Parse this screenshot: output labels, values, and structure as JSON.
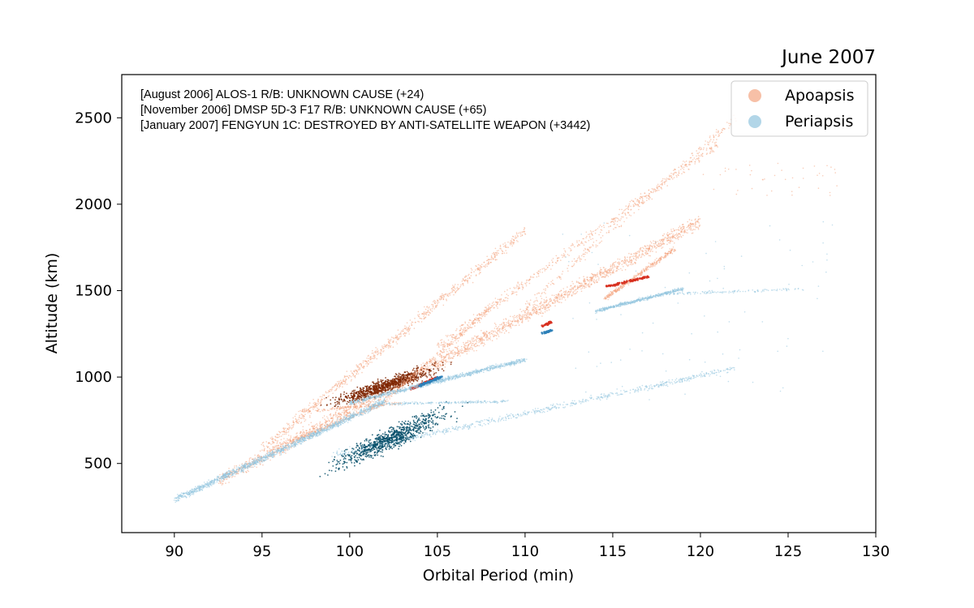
{
  "chart_data": {
    "type": "scatter",
    "title": "June 2007",
    "xlabel": "Orbital Period (min)",
    "ylabel": "Altitude (km)",
    "xlim": [
      87,
      130
    ],
    "ylim": [
      100,
      2750
    ],
    "xticks": [
      90,
      95,
      100,
      105,
      110,
      115,
      120,
      125,
      130
    ],
    "yticks": [
      500,
      1000,
      1500,
      2000,
      2500
    ],
    "grid": false,
    "legend_position": "top-right",
    "annotations": [
      "[August 2006]  ALOS-1 R/B: UNKNOWN CAUSE (+24)",
      "[November 2006]  DMSP 5D-3 F17 R/B: UNKNOWN CAUSE (+65)",
      "[January 2007]  FENGYUN 1C: DESTROYED BY ANTI-SATELLITE WEAPON (+3442)"
    ],
    "series": [
      {
        "name": "Apoapsis",
        "color": "#f4a582",
        "highlight_color": "#d7301f",
        "dark_color": "#7f2704",
        "clusters": [
          {
            "kind": "band",
            "x": [
              92.5,
              120
            ],
            "y": [
              400,
              1900
            ],
            "count": 2300
          },
          {
            "kind": "band",
            "x": [
              95,
              110
            ],
            "y": [
              580,
              1850
            ],
            "count": 800
          },
          {
            "kind": "band",
            "x": [
              105,
              121
            ],
            "y": [
              1180,
              2350
            ],
            "count": 500
          },
          {
            "kind": "band",
            "x": [
              110,
              122
            ],
            "y": [
              1400,
              2500
            ],
            "count": 250
          },
          {
            "kind": "band",
            "x": [
              114.5,
              118.5
            ],
            "y": [
              1450,
              1740
            ],
            "count": 350
          },
          {
            "kind": "band",
            "x": [
              96.5,
              102
            ],
            "y": [
              620,
              850
            ],
            "count": 250
          },
          {
            "kind": "highlight",
            "x": [
              103.5,
              105
            ],
            "y": [
              930,
              1000
            ],
            "count": 80
          },
          {
            "kind": "highlight",
            "x": [
              111,
              111.5
            ],
            "y": [
              1295,
              1320
            ],
            "count": 30
          },
          {
            "kind": "highlight",
            "x": [
              114.5,
              117
            ],
            "y": [
              1520,
              1580
            ],
            "count": 80
          },
          {
            "kind": "blob",
            "x": [
              97,
              107
            ],
            "y": [
              780,
              1120
            ],
            "count": 900
          },
          {
            "kind": "band",
            "x": [
              102,
              108.5
            ],
            "y": [
              860,
              1440
            ],
            "count": 300
          },
          {
            "kind": "band",
            "x": [
              97,
              103
            ],
            "y": [
              800,
              850
            ],
            "count": 150
          },
          {
            "kind": "sparse",
            "x": [
              120,
              128
            ],
            "y": [
              2050,
              2250
            ],
            "count": 40
          }
        ]
      },
      {
        "name": "Periapsis",
        "color": "#92c5de",
        "highlight_color": "#2c7fb8",
        "dark_color": "#08506b",
        "clusters": [
          {
            "kind": "band",
            "x": [
              90,
              102
            ],
            "y": [
              290,
              860
            ],
            "count": 1400
          },
          {
            "kind": "band",
            "x": [
              100,
              110
            ],
            "y": [
              850,
              1100
            ],
            "count": 900
          },
          {
            "kind": "band",
            "x": [
              99,
              122
            ],
            "y": [
              550,
              1050
            ],
            "count": 700
          },
          {
            "kind": "band",
            "x": [
              114,
              119
            ],
            "y": [
              1380,
              1510
            ],
            "count": 500
          },
          {
            "kind": "band",
            "x": [
              118,
              126
            ],
            "y": [
              1480,
              1510
            ],
            "count": 120
          },
          {
            "kind": "highlight",
            "x": [
              104,
              105.2
            ],
            "y": [
              950,
              1000
            ],
            "count": 80
          },
          {
            "kind": "highlight",
            "x": [
              111,
              111.5
            ],
            "y": [
              1255,
              1270
            ],
            "count": 30
          },
          {
            "kind": "blob",
            "x": [
              96.5,
              108
            ],
            "y": [
              380,
              900
            ],
            "count": 900
          },
          {
            "kind": "band",
            "x": [
              102,
              109
            ],
            "y": [
              845,
              860
            ],
            "count": 200
          },
          {
            "kind": "sparse",
            "x": [
              112,
              128
            ],
            "y": [
              850,
              1900
            ],
            "count": 80
          }
        ]
      }
    ]
  }
}
